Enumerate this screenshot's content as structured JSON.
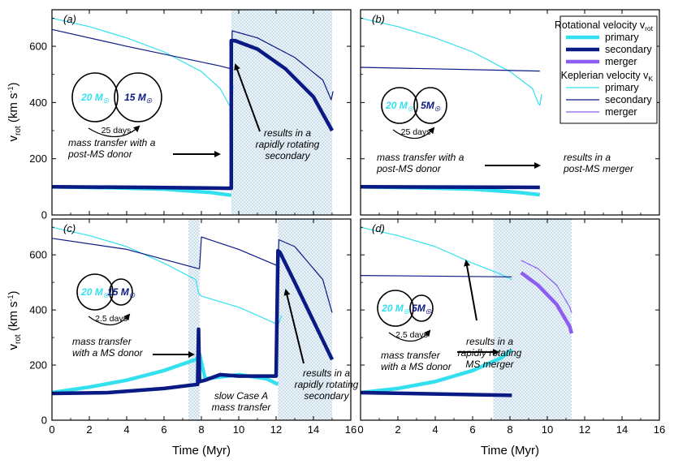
{
  "chart_data": {
    "type": "line",
    "xlabel": "Time (Myr)",
    "ylabel": "v",
    "ylabel_sub": "rot",
    "ylabel_unit": "(km s",
    "ylabel_unit_sup": "-1",
    "ylabel_unit_end": ")",
    "xlim": [
      0,
      16
    ],
    "ylim": [
      0,
      730
    ],
    "x_ticks": [
      "0",
      "2",
      "4",
      "6",
      "8",
      "10",
      "12",
      "14",
      "16"
    ],
    "y_ticks": [
      "0",
      "200",
      "400",
      "600"
    ],
    "grid": false,
    "legend": {
      "placement": "top-right",
      "rotational_title": "Rotational velocity v",
      "rotational_sub": "rot",
      "keplerian_title": "Keplerian velocity v",
      "keplerian_sub": "K",
      "entries": [
        {
          "group": "rotational",
          "label": "primary",
          "color": "#33e0f0"
        },
        {
          "group": "rotational",
          "label": "secondary",
          "color": "#0a1a85"
        },
        {
          "group": "rotational",
          "label": "merger",
          "color": "#8d5cf0"
        },
        {
          "group": "keplerian",
          "label": "primary",
          "color": "#33e0f0"
        },
        {
          "group": "keplerian",
          "label": "secondary",
          "color": "#0a1a85"
        },
        {
          "group": "keplerian",
          "label": "merger",
          "color": "#8d5cf0"
        }
      ]
    },
    "panels": [
      {
        "letter": "(a)",
        "system": {
          "m1": "20 M",
          "m1_sub": "☉",
          "m2": "15 M",
          "m2_sub": "☉",
          "period": "25 days"
        },
        "shaded": [
          [
            9.6,
            15
          ]
        ],
        "annotations": [
          {
            "lines": [
              "mass transfer with a",
              "post-MS donor"
            ]
          },
          {
            "lines": [
              "results in a",
              "rapidly rotating",
              "secondary"
            ]
          }
        ],
        "series": [
          {
            "group": "keplerian",
            "component": "primary",
            "x": [
              0,
              2,
              4,
              6,
              8,
              9,
              9.5,
              9.6,
              9.7
            ],
            "y": [
              700,
              670,
              630,
              580,
              510,
              450,
              390,
              380,
              460
            ]
          },
          {
            "group": "keplerian",
            "component": "secondary",
            "x": [
              0,
              4,
              9,
              9.6,
              9.65,
              11,
              13,
              14.5,
              14.95,
              15.05
            ],
            "y": [
              660,
              600,
              530,
              520,
              655,
              630,
              560,
              480,
              410,
              440
            ]
          },
          {
            "group": "rotational",
            "component": "primary",
            "x": [
              0,
              3,
              6,
              8.5,
              9.6
            ],
            "y": [
              100,
              97,
              92,
              80,
              70
            ]
          },
          {
            "group": "rotational",
            "component": "secondary",
            "x": [
              0,
              5,
              9.6,
              9.6,
              9.8,
              11,
              12.5,
              14,
              15
            ],
            "y": [
              100,
              98,
              95,
              620,
              620,
              590,
              520,
              420,
              300
            ]
          }
        ]
      },
      {
        "letter": "(b)",
        "system": {
          "m1": "20 M",
          "m1_sub": "☉",
          "m2": "5M",
          "m2_sub": "☉",
          "period": "25 days"
        },
        "shaded": [],
        "annotations": [
          {
            "lines": [
              "mass transfer with a",
              "post-MS donor"
            ]
          },
          {
            "lines": [
              "results in a",
              "post-MS merger"
            ]
          }
        ],
        "series": [
          {
            "group": "keplerian",
            "component": "primary",
            "x": [
              0,
              2,
              4,
              6,
              8,
              9.2,
              9.5,
              9.6,
              9.7
            ],
            "y": [
              700,
              670,
              630,
              580,
              510,
              450,
              400,
              390,
              430
            ]
          },
          {
            "group": "keplerian",
            "component": "secondary",
            "x": [
              0,
              9.6
            ],
            "y": [
              525,
              512
            ]
          },
          {
            "group": "rotational",
            "component": "primary",
            "x": [
              0,
              3,
              6,
              8.5,
              9.6
            ],
            "y": [
              100,
              97,
              92,
              80,
              72
            ]
          },
          {
            "group": "rotational",
            "component": "secondary",
            "x": [
              0,
              9.6
            ],
            "y": [
              100,
              98
            ]
          }
        ]
      },
      {
        "letter": "(c)",
        "system": {
          "m1": "20 M",
          "m1_sub": "☉",
          "m2": "15 M",
          "m2_sub": "☉",
          "period": "2.5 days"
        },
        "shaded": [
          [
            7.3,
            7.9
          ],
          [
            12.1,
            15
          ]
        ],
        "annotations": [
          {
            "lines": [
              "mass transfer",
              "with a MS donor"
            ]
          },
          {
            "lines": [
              "slow Case A",
              "mass transfer"
            ]
          },
          {
            "lines": [
              "results in a",
              "rapidly rotating",
              "secondary"
            ]
          }
        ],
        "series": [
          {
            "group": "keplerian",
            "component": "primary",
            "x": [
              0,
              2,
              4,
              6,
              7.7,
              7.85,
              8,
              10,
              12,
              12.1,
              12.3
            ],
            "y": [
              700,
              670,
              630,
              570,
              510,
              460,
              450,
              410,
              350,
              345,
              380
            ]
          },
          {
            "group": "keplerian",
            "component": "secondary",
            "x": [
              0,
              4,
              7.85,
              7.9,
              8,
              10,
              12.1,
              12.15,
              13,
              14.5,
              15
            ],
            "y": [
              660,
              620,
              550,
              550,
              665,
              620,
              560,
              655,
              630,
              510,
              390
            ]
          },
          {
            "group": "rotational",
            "component": "primary",
            "x": [
              0,
              2,
              4,
              6,
              7.7,
              7.9,
              8.2,
              10,
              11.5,
              12.1
            ],
            "y": [
              100,
              120,
              145,
              180,
              220,
              240,
              150,
              165,
              150,
              130
            ]
          },
          {
            "group": "rotational",
            "component": "secondary",
            "x": [
              0,
              3,
              6,
              7.8,
              7.85,
              7.9,
              8.2,
              9,
              10,
              12,
              12.1,
              12.2,
              13,
              14,
              15
            ],
            "y": [
              97,
              100,
              115,
              130,
              330,
              140,
              145,
              165,
              160,
              160,
              615,
              610,
              500,
              360,
              220
            ]
          }
        ]
      },
      {
        "letter": "(d)",
        "system": {
          "m1": "20 M",
          "m1_sub": "☉",
          "m2": "5M",
          "m2_sub": "☉",
          "period": "2.5 days"
        },
        "shaded": [
          [
            7.1,
            11.3
          ]
        ],
        "annotations": [
          {
            "lines": [
              "mass transfer",
              "with a MS donor"
            ]
          },
          {
            "lines": [
              "results in a",
              "rapidly rotating",
              "MS merger"
            ]
          }
        ],
        "series": [
          {
            "group": "keplerian",
            "component": "primary",
            "x": [
              0,
              2,
              4,
              6,
              7.5,
              8.1
            ],
            "y": [
              700,
              670,
              630,
              570,
              530,
              510
            ]
          },
          {
            "group": "keplerian",
            "component": "secondary",
            "x": [
              0,
              8.1
            ],
            "y": [
              525,
              520
            ]
          },
          {
            "group": "keplerian",
            "component": "merger",
            "x": [
              8.6,
              9.5,
              10.5,
              11.2,
              11.3
            ],
            "y": [
              580,
              550,
              490,
              410,
              390
            ]
          },
          {
            "group": "rotational",
            "component": "primary",
            "x": [
              0,
              2,
              4,
              6,
              7.5,
              8.1
            ],
            "y": [
              100,
              115,
              140,
              180,
              225,
              255
            ]
          },
          {
            "group": "rotational",
            "component": "secondary",
            "x": [
              0,
              8.1
            ],
            "y": [
              100,
              90
            ]
          },
          {
            "group": "rotational",
            "component": "merger",
            "x": [
              8.6,
              9.5,
              10.5,
              11.2,
              11.3
            ],
            "y": [
              535,
              490,
              420,
              340,
              315
            ]
          }
        ]
      }
    ]
  }
}
